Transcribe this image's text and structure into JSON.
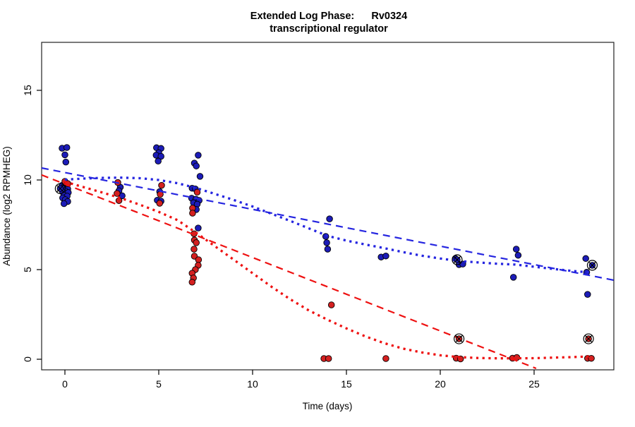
{
  "title": {
    "line1": "Extended Log Phase:      Rv0324",
    "line2": "transcriptional regulator"
  },
  "axes": {
    "xlabel": "Time  (days)",
    "ylabel": "Abundance  (log2 RPMHEG)",
    "x_ticks": [
      0,
      5,
      10,
      15,
      20,
      25
    ],
    "y_ticks": [
      0,
      5,
      10,
      15
    ]
  },
  "colors": {
    "point_blue": "#1c1cb8",
    "point_red": "#d42020",
    "line_blue": "#2525e0",
    "line_red": "#ee1111",
    "marker_outline": "#000000",
    "box": "#222222"
  },
  "chart_data": {
    "type": "scatter",
    "title": "Extended Log Phase: Rv0324 transcriptional regulator",
    "xlabel": "Time (days)",
    "ylabel": "Abundance (log2 RPMHEG)",
    "xlim": [
      -1.25,
      29.3
    ],
    "ylim": [
      -0.6,
      17.7
    ],
    "grid": false,
    "legend": "none",
    "series": [
      {
        "name": "blue_condition_points",
        "color": "#1c1cb8",
        "points": [
          [
            -0.15,
            11.77
          ],
          [
            0.1,
            11.81
          ],
          [
            0,
            11.4
          ],
          [
            0.05,
            11.0
          ],
          [
            -0.15,
            9.7
          ],
          [
            0.1,
            9.72
          ],
          [
            -0.1,
            9.55
          ],
          [
            0.15,
            9.5
          ],
          [
            0,
            9.4
          ],
          [
            -0.12,
            9.33
          ],
          [
            0.18,
            9.3
          ],
          [
            -0.05,
            9.15
          ],
          [
            0.12,
            9.1
          ],
          [
            -0.12,
            9.0
          ],
          [
            0.02,
            8.9
          ],
          [
            0.15,
            8.8
          ],
          [
            -0.05,
            8.68
          ],
          [
            2.95,
            9.6
          ],
          [
            2.88,
            9.4
          ],
          [
            3.05,
            9.12
          ],
          [
            4.88,
            11.8
          ],
          [
            5.12,
            11.76
          ],
          [
            5.0,
            11.52
          ],
          [
            4.86,
            11.38
          ],
          [
            5.12,
            11.32
          ],
          [
            4.97,
            11.05
          ],
          [
            5.05,
            9.35
          ],
          [
            4.92,
            8.87
          ],
          [
            5.12,
            8.82
          ],
          [
            7.1,
            11.38
          ],
          [
            6.9,
            10.94
          ],
          [
            7.0,
            10.78
          ],
          [
            7.2,
            10.2
          ],
          [
            6.78,
            9.54
          ],
          [
            6.95,
            9.5
          ],
          [
            6.75,
            8.98
          ],
          [
            6.98,
            8.93
          ],
          [
            7.15,
            8.86
          ],
          [
            6.85,
            8.73
          ],
          [
            7.05,
            8.65
          ],
          [
            7.0,
            8.35
          ],
          [
            7.1,
            7.32
          ],
          [
            14.1,
            7.83
          ],
          [
            13.9,
            6.85
          ],
          [
            13.95,
            6.5
          ],
          [
            14.0,
            6.14
          ],
          [
            16.85,
            5.7
          ],
          [
            17.1,
            5.76
          ],
          [
            20.8,
            5.62
          ],
          [
            21.0,
            5.28
          ],
          [
            21.2,
            5.31
          ],
          [
            24.05,
            6.14
          ],
          [
            24.15,
            5.8
          ],
          [
            23.9,
            4.57
          ],
          [
            27.75,
            5.62
          ],
          [
            27.8,
            4.85
          ],
          [
            27.85,
            3.62
          ]
        ]
      },
      {
        "name": "red_condition_points",
        "color": "#d42020",
        "points": [
          [
            0,
            9.92
          ],
          [
            0.15,
            9.8
          ],
          [
            2.82,
            9.86
          ],
          [
            2.78,
            9.25
          ],
          [
            2.88,
            8.85
          ],
          [
            5.15,
            9.7
          ],
          [
            5.08,
            9.2
          ],
          [
            5.05,
            8.7
          ],
          [
            7.05,
            9.32
          ],
          [
            6.8,
            8.43
          ],
          [
            6.8,
            8.15
          ],
          [
            6.88,
            7.0
          ],
          [
            6.9,
            6.65
          ],
          [
            7.0,
            6.5
          ],
          [
            6.88,
            6.14
          ],
          [
            6.9,
            5.75
          ],
          [
            7.12,
            5.55
          ],
          [
            7.1,
            5.24
          ],
          [
            6.95,
            5.0
          ],
          [
            6.78,
            4.8
          ],
          [
            6.85,
            4.53
          ],
          [
            6.78,
            4.3
          ],
          [
            14.2,
            3.03
          ],
          [
            13.8,
            0.04
          ],
          [
            14.05,
            0.04
          ],
          [
            17.1,
            0.04
          ],
          [
            20.85,
            0.06
          ],
          [
            21.08,
            0.02
          ],
          [
            23.85,
            0.06
          ],
          [
            24.08,
            0.1
          ],
          [
            27.85,
            0.05
          ],
          [
            28.05,
            0.05
          ]
        ]
      },
      {
        "name": "blue_circled_x_points",
        "color": "#1c1cb8",
        "marker": "circle-x",
        "points": [
          [
            -0.25,
            9.52
          ],
          [
            20.9,
            5.55
          ],
          [
            28.1,
            5.24
          ]
        ]
      },
      {
        "name": "red_circled_x_points",
        "color": "#d42020",
        "marker": "circle-x",
        "points": [
          [
            21.0,
            1.14
          ],
          [
            27.9,
            1.14
          ]
        ]
      },
      {
        "name": "blue_linear_fit",
        "style": "dashed",
        "color": "#2525e0",
        "points": [
          [
            -1.24,
            10.67
          ],
          [
            29.25,
            4.41
          ]
        ]
      },
      {
        "name": "red_linear_fit",
        "style": "dashed",
        "color": "#ee1111",
        "points": [
          [
            -1.24,
            10.28
          ],
          [
            25.11,
            -0.51
          ]
        ]
      },
      {
        "name": "blue_smooth_fit",
        "style": "dotted",
        "color": "#2525e0",
        "points": [
          [
            0,
            10.02
          ],
          [
            1,
            10.08
          ],
          [
            2,
            10.12
          ],
          [
            3,
            10.13
          ],
          [
            4,
            10.1
          ],
          [
            5,
            10.0
          ],
          [
            6,
            9.82
          ],
          [
            7,
            9.55
          ],
          [
            8,
            9.22
          ],
          [
            9,
            8.88
          ],
          [
            10,
            8.52
          ],
          [
            11,
            8.12
          ],
          [
            12,
            7.72
          ],
          [
            13,
            7.3
          ],
          [
            14,
            6.88
          ],
          [
            15,
            6.62
          ],
          [
            16,
            6.4
          ],
          [
            17,
            6.2
          ],
          [
            18,
            5.98
          ],
          [
            19,
            5.78
          ],
          [
            20,
            5.62
          ],
          [
            21,
            5.48
          ],
          [
            22,
            5.4
          ],
          [
            23,
            5.33
          ],
          [
            24,
            5.28
          ],
          [
            25,
            5.16
          ],
          [
            26,
            5.04
          ],
          [
            27,
            4.93
          ],
          [
            28,
            4.84
          ]
        ]
      },
      {
        "name": "red_smooth_fit",
        "style": "dotted",
        "color": "#ee1111",
        "points": [
          [
            0,
            9.9
          ],
          [
            1,
            9.6
          ],
          [
            2,
            9.3
          ],
          [
            3,
            8.98
          ],
          [
            4,
            8.62
          ],
          [
            5,
            8.22
          ],
          [
            6,
            7.76
          ],
          [
            7,
            7.05
          ],
          [
            8,
            6.3
          ],
          [
            9,
            5.55
          ],
          [
            10,
            4.8
          ],
          [
            11,
            4.05
          ],
          [
            12,
            3.35
          ],
          [
            13,
            2.72
          ],
          [
            14,
            2.2
          ],
          [
            15,
            1.72
          ],
          [
            16,
            1.28
          ],
          [
            17,
            0.9
          ],
          [
            18,
            0.6
          ],
          [
            19,
            0.38
          ],
          [
            20,
            0.22
          ],
          [
            21,
            0.12
          ],
          [
            22,
            0.07
          ],
          [
            23,
            0.05
          ],
          [
            24,
            0.05
          ],
          [
            25,
            0.06
          ],
          [
            26,
            0.09
          ],
          [
            27,
            0.12
          ],
          [
            28,
            0.16
          ]
        ]
      }
    ]
  }
}
